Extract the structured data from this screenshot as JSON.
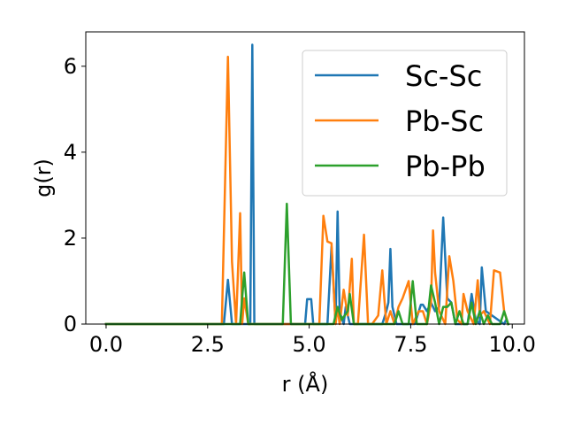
{
  "chart_data": {
    "type": "line",
    "title": "",
    "xlabel": "r (Å)",
    "ylabel": "g(r)",
    "xlim": [
      -0.5,
      10.3
    ],
    "ylim": [
      0,
      6.8
    ],
    "xticks": [
      0.0,
      2.5,
      5.0,
      7.5,
      10.0
    ],
    "xtick_labels": [
      "0.0",
      "2.5",
      "5.0",
      "7.5",
      "10.0"
    ],
    "yticks": [
      0,
      2,
      4,
      6
    ],
    "ytick_labels": [
      "0",
      "2",
      "4",
      "6"
    ],
    "grid": false,
    "legend_position": "top-right",
    "series": [
      {
        "name": "Sc-Sc",
        "color": "#1f77b4",
        "x": [
          0.0,
          2.9,
          3.0,
          3.1,
          3.35,
          3.45,
          3.55,
          3.6,
          3.65,
          3.75,
          4.9,
          4.95,
          5.05,
          5.1,
          5.45,
          5.55,
          5.65,
          5.7,
          5.75,
          5.85,
          5.9,
          6.0,
          6.1,
          6.8,
          6.9,
          6.95,
          7.0,
          7.05,
          7.15,
          7.6,
          7.7,
          7.75,
          7.8,
          7.9,
          8.0,
          8.1,
          8.2,
          8.3,
          8.4,
          8.5,
          8.6,
          8.9,
          9.0,
          9.1,
          9.2,
          9.25,
          9.35,
          9.8,
          9.85,
          9.9
        ],
        "y": [
          0,
          0,
          1.03,
          0,
          0,
          0,
          0,
          6.5,
          0,
          0,
          0,
          0.58,
          0.58,
          0,
          0,
          1.8,
          0,
          2.62,
          0.3,
          0,
          0.4,
          0,
          0,
          0,
          0.3,
          0.5,
          1.75,
          0.4,
          0,
          0,
          0.3,
          0.45,
          0.45,
          0.3,
          0.5,
          0.3,
          0.4,
          2.48,
          0.6,
          0.5,
          0,
          0,
          0.7,
          0.1,
          0,
          1.32,
          0.3,
          0,
          0.1,
          0
        ]
      },
      {
        "name": "Pb-Sc",
        "color": "#ff7f0e",
        "x": [
          0.0,
          2.85,
          3.0,
          3.1,
          3.2,
          3.3,
          3.35,
          3.4,
          3.5,
          5.25,
          5.35,
          5.45,
          5.55,
          5.65,
          5.7,
          5.75,
          5.85,
          5.95,
          6.05,
          6.1,
          6.2,
          6.35,
          6.45,
          6.55,
          6.7,
          6.8,
          6.85,
          6.9,
          7.0,
          7.1,
          7.2,
          7.3,
          7.45,
          7.55,
          7.7,
          7.8,
          7.9,
          8.0,
          8.05,
          8.1,
          8.2,
          8.35,
          8.45,
          8.55,
          8.65,
          8.75,
          8.8,
          8.9,
          9.05,
          9.15,
          9.2,
          9.3,
          9.45,
          9.55,
          9.7,
          9.8,
          9.9
        ],
        "y": [
          0,
          0,
          6.22,
          1.45,
          0,
          2.58,
          0,
          0.6,
          0,
          0,
          2.52,
          1.92,
          1.88,
          0,
          0.4,
          0,
          0.8,
          0.2,
          1.52,
          0,
          0,
          2.08,
          0,
          0,
          0.2,
          1.25,
          0.6,
          0,
          0.3,
          0,
          0.4,
          0.6,
          1.0,
          0,
          0.3,
          0.3,
          0,
          0.5,
          2.18,
          1.2,
          0.3,
          0,
          1.58,
          1.0,
          0.1,
          0,
          0.7,
          0.3,
          0,
          1.02,
          0.2,
          0.3,
          0,
          1.25,
          1.2,
          0.3,
          0
        ]
      },
      {
        "name": "Pb-Pb",
        "color": "#2ca02c",
        "x": [
          0.0,
          3.3,
          3.4,
          3.5,
          4.35,
          4.45,
          4.55,
          5.6,
          5.7,
          5.8,
          5.95,
          6.0,
          6.1,
          6.2,
          7.1,
          7.2,
          7.3,
          7.45,
          7.55,
          7.65,
          7.8,
          7.9,
          8.0,
          8.1,
          8.2,
          8.3,
          8.4,
          8.5,
          8.6,
          8.7,
          8.8,
          8.9,
          9.0,
          9.1,
          9.2,
          9.3,
          9.4,
          9.5,
          9.7,
          9.8,
          9.9
        ],
        "y": [
          0,
          0,
          1.2,
          0,
          0,
          2.8,
          0,
          0,
          0.4,
          0.1,
          0.3,
          0.7,
          0,
          0,
          0,
          0.3,
          0,
          0,
          1.0,
          0,
          0,
          0,
          0.9,
          0.5,
          0,
          0.4,
          0.4,
          0.5,
          0,
          0.3,
          0,
          0,
          0.5,
          0,
          0.3,
          0,
          0.2,
          0,
          0,
          0.3,
          0
        ]
      }
    ]
  }
}
